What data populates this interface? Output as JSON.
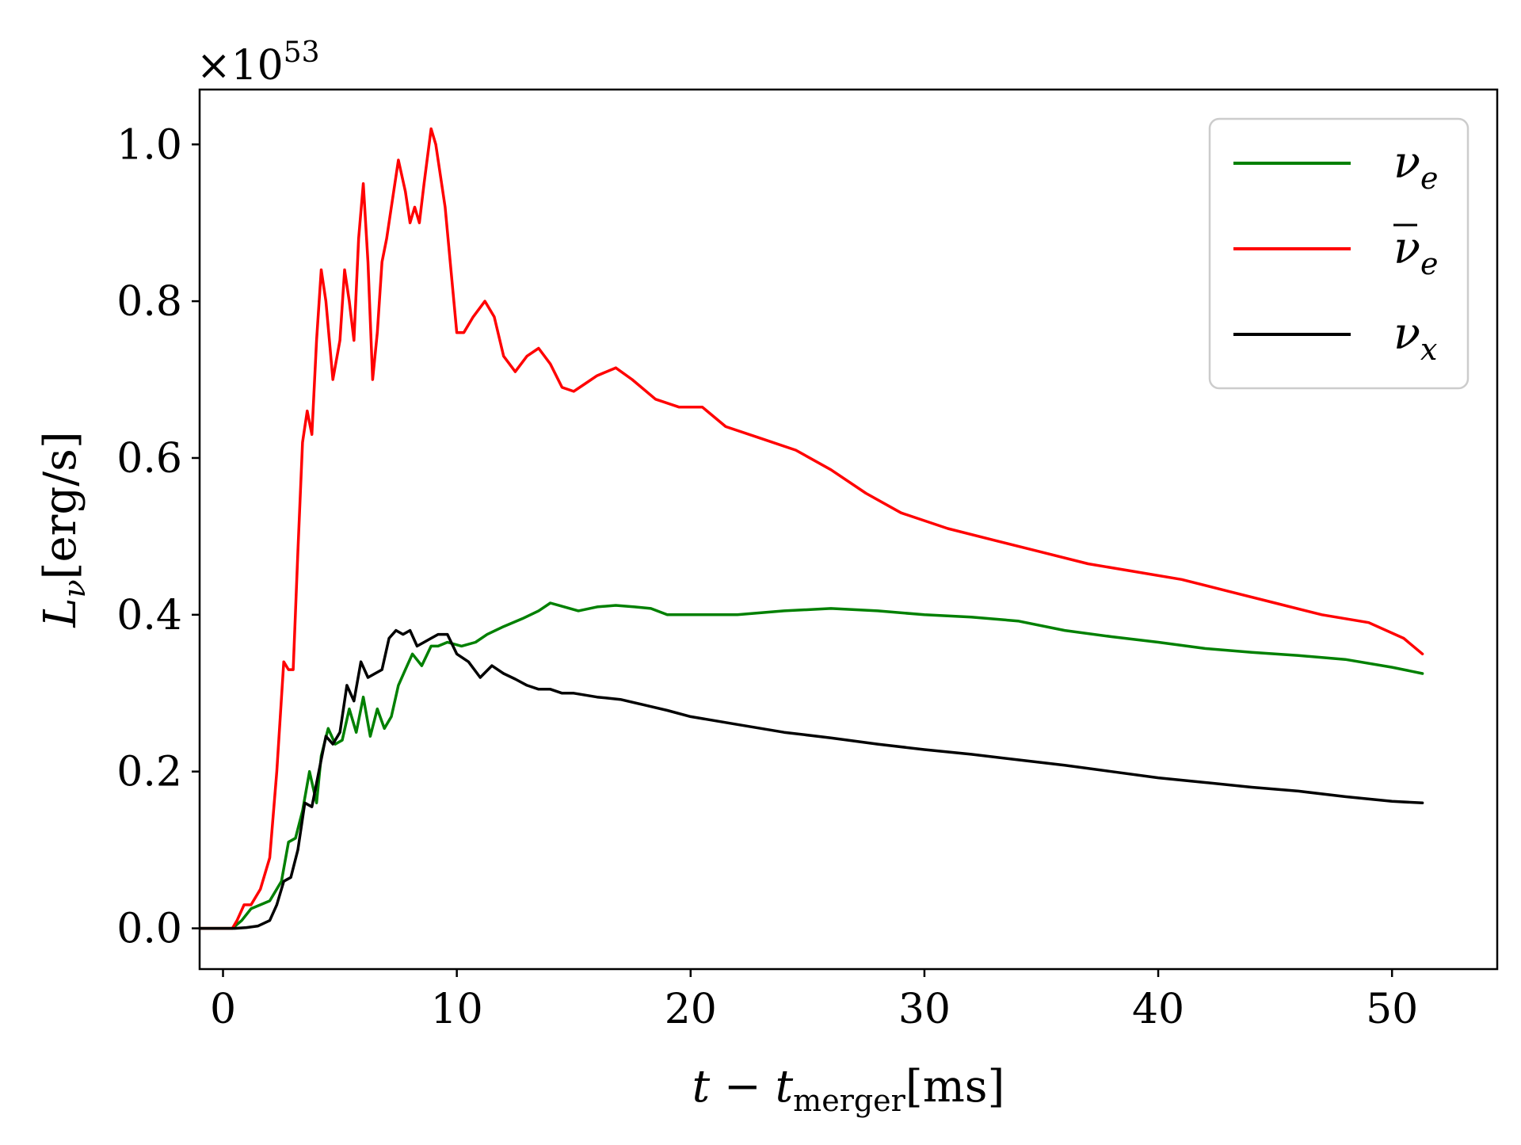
{
  "chart_data": {
    "type": "line",
    "title": "",
    "xlabel": "t − t_merger[ms]",
    "xlabel_parts": {
      "t": "t",
      "minus": " − ",
      "t2": "t",
      "sub": "merger",
      "unit": "[ms]"
    },
    "ylabel": "L_ν[erg/s]",
    "ylabel_parts": {
      "L": "L",
      "sub": "ν",
      "unit": "[erg/s]"
    },
    "y_scale_label": "×10⁵³",
    "y_scale_parts": {
      "times": "×10",
      "exp": "53"
    },
    "xlim": [
      -1,
      54.5
    ],
    "ylim": [
      -0.052,
      1.07
    ],
    "xticks": [
      0,
      10,
      20,
      30,
      40,
      50
    ],
    "xtick_labels": [
      "0",
      "10",
      "20",
      "30",
      "40",
      "50"
    ],
    "yticks": [
      0.0,
      0.2,
      0.4,
      0.6,
      0.8,
      1.0
    ],
    "ytick_labels": [
      "0.0",
      "0.2",
      "0.4",
      "0.6",
      "0.8",
      "1.0"
    ],
    "grid": false,
    "legend_position": "top-right",
    "series": [
      {
        "name": "ν_e",
        "legend_parts": {
          "base": "ν",
          "sub": "e",
          "bar": false
        },
        "color": "#008000",
        "x": [
          -1,
          0.4,
          0.8,
          1.2,
          2.0,
          2.5,
          2.8,
          3.1,
          3.4,
          3.7,
          4.0,
          4.2,
          4.5,
          4.8,
          5.1,
          5.4,
          5.7,
          6.0,
          6.3,
          6.6,
          6.9,
          7.2,
          7.5,
          7.8,
          8.1,
          8.5,
          8.9,
          9.2,
          9.6,
          10.2,
          10.8,
          11.3,
          12.0,
          12.8,
          13.5,
          14.0,
          14.6,
          15.2,
          16.0,
          16.8,
          17.6,
          18.3,
          19.0,
          20.0,
          22.0,
          24.0,
          26.0,
          28.0,
          30.0,
          32.0,
          34.0,
          36.0,
          38.0,
          40.0,
          42.0,
          44.0,
          46.0,
          48.0,
          50.0,
          51.3
        ],
        "y": [
          0.0,
          0.0,
          0.01,
          0.025,
          0.035,
          0.06,
          0.11,
          0.115,
          0.15,
          0.2,
          0.16,
          0.22,
          0.255,
          0.235,
          0.24,
          0.28,
          0.25,
          0.295,
          0.245,
          0.28,
          0.255,
          0.27,
          0.31,
          0.33,
          0.35,
          0.335,
          0.36,
          0.36,
          0.365,
          0.36,
          0.365,
          0.375,
          0.385,
          0.395,
          0.405,
          0.415,
          0.41,
          0.405,
          0.41,
          0.412,
          0.41,
          0.408,
          0.4,
          0.4,
          0.4,
          0.405,
          0.408,
          0.405,
          0.4,
          0.397,
          0.392,
          0.38,
          0.372,
          0.365,
          0.357,
          0.352,
          0.348,
          0.343,
          0.333,
          0.325
        ]
      },
      {
        "name": "ν̄_e",
        "legend_parts": {
          "base": "ν",
          "sub": "e",
          "bar": true
        },
        "color": "#ff0000",
        "x": [
          -1,
          0.4,
          0.6,
          0.9,
          1.2,
          1.6,
          2.0,
          2.3,
          2.6,
          2.8,
          3.0,
          3.2,
          3.4,
          3.6,
          3.8,
          4.0,
          4.2,
          4.4,
          4.7,
          5.0,
          5.2,
          5.4,
          5.6,
          5.8,
          6.0,
          6.2,
          6.4,
          6.6,
          6.8,
          7.0,
          7.2,
          7.5,
          7.8,
          8.0,
          8.2,
          8.4,
          8.6,
          8.9,
          9.1,
          9.5,
          10.0,
          10.3,
          10.7,
          11.2,
          11.6,
          12.0,
          12.5,
          13.0,
          13.5,
          14.0,
          14.5,
          15.0,
          15.5,
          16.0,
          16.8,
          17.5,
          18.5,
          19.5,
          20.5,
          21.5,
          23.0,
          24.5,
          26.0,
          27.5,
          29.0,
          31.0,
          33.0,
          35.0,
          37.0,
          39.0,
          41.0,
          43.0,
          45.0,
          47.0,
          49.0,
          50.5,
          51.3
        ],
        "y": [
          0.0,
          0.0,
          0.01,
          0.03,
          0.03,
          0.05,
          0.09,
          0.2,
          0.34,
          0.33,
          0.33,
          0.48,
          0.62,
          0.66,
          0.63,
          0.75,
          0.84,
          0.8,
          0.7,
          0.75,
          0.84,
          0.8,
          0.75,
          0.88,
          0.95,
          0.85,
          0.7,
          0.76,
          0.85,
          0.88,
          0.92,
          0.98,
          0.94,
          0.9,
          0.92,
          0.9,
          0.95,
          1.02,
          1.0,
          0.92,
          0.76,
          0.76,
          0.78,
          0.8,
          0.78,
          0.73,
          0.71,
          0.73,
          0.74,
          0.72,
          0.69,
          0.685,
          0.695,
          0.705,
          0.715,
          0.7,
          0.675,
          0.665,
          0.665,
          0.64,
          0.625,
          0.61,
          0.585,
          0.555,
          0.53,
          0.51,
          0.495,
          0.48,
          0.465,
          0.455,
          0.445,
          0.43,
          0.415,
          0.4,
          0.39,
          0.37,
          0.35
        ]
      },
      {
        "name": "ν_x",
        "legend_parts": {
          "base": "ν",
          "sub": "x",
          "bar": false
        },
        "color": "#000000",
        "x": [
          -1,
          0.5,
          1.0,
          1.5,
          2.0,
          2.3,
          2.6,
          2.9,
          3.2,
          3.5,
          3.8,
          4.1,
          4.4,
          4.7,
          5.0,
          5.3,
          5.6,
          5.9,
          6.2,
          6.5,
          6.8,
          7.1,
          7.4,
          7.7,
          8.0,
          8.3,
          8.6,
          8.9,
          9.2,
          9.6,
          10.0,
          10.5,
          11.0,
          11.5,
          12.0,
          12.5,
          13.0,
          13.5,
          14.0,
          14.5,
          15.0,
          16.0,
          17.0,
          18.0,
          19.0,
          20.0,
          22.0,
          24.0,
          26.0,
          28.0,
          30.0,
          32.0,
          34.0,
          36.0,
          38.0,
          40.0,
          42.0,
          44.0,
          46.0,
          48.0,
          50.0,
          51.3
        ],
        "y": [
          0.0,
          0.0,
          0.001,
          0.003,
          0.01,
          0.03,
          0.06,
          0.065,
          0.1,
          0.16,
          0.155,
          0.2,
          0.245,
          0.235,
          0.25,
          0.31,
          0.29,
          0.34,
          0.32,
          0.325,
          0.33,
          0.37,
          0.38,
          0.375,
          0.38,
          0.36,
          0.365,
          0.37,
          0.375,
          0.375,
          0.35,
          0.34,
          0.32,
          0.335,
          0.325,
          0.318,
          0.31,
          0.305,
          0.305,
          0.3,
          0.3,
          0.295,
          0.292,
          0.285,
          0.278,
          0.27,
          0.26,
          0.25,
          0.243,
          0.235,
          0.228,
          0.222,
          0.215,
          0.208,
          0.2,
          0.192,
          0.186,
          0.18,
          0.175,
          0.168,
          0.162,
          0.16
        ]
      }
    ]
  }
}
